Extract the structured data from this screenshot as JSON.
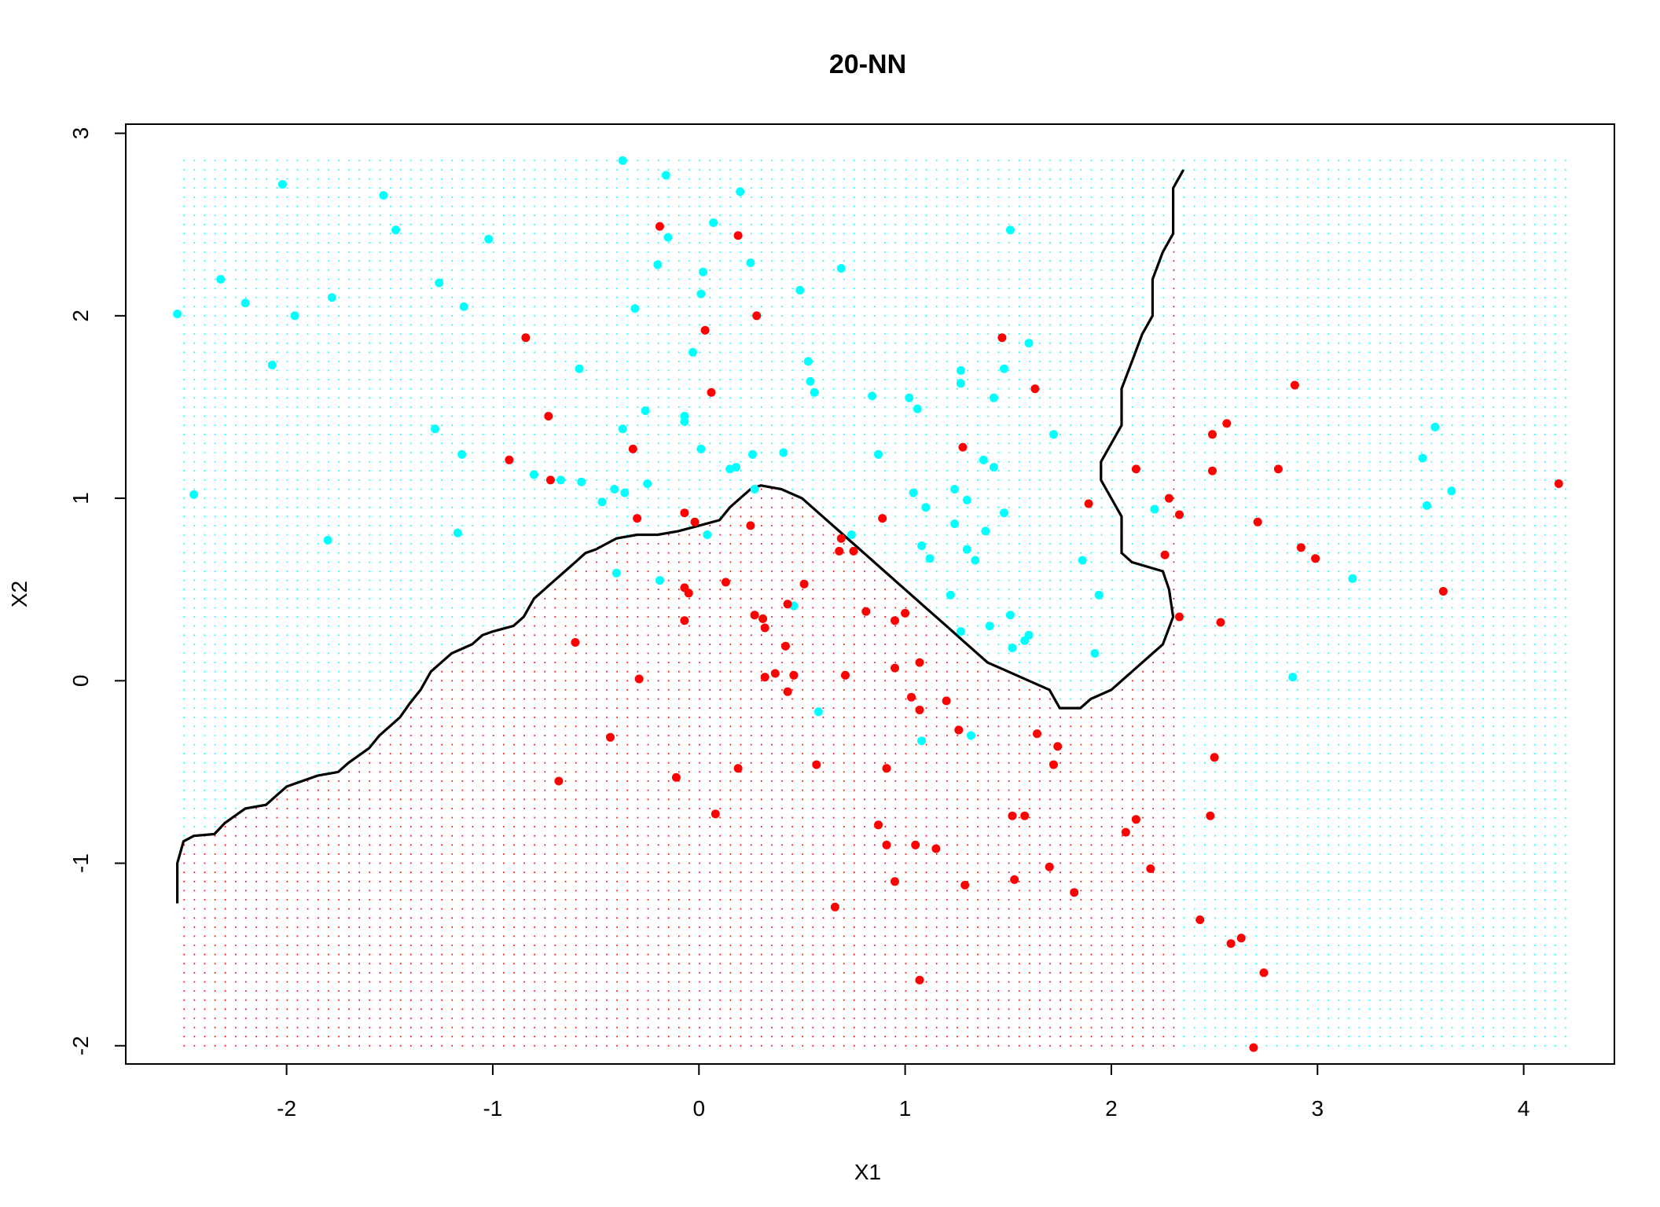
{
  "chart_data": {
    "type": "scatter",
    "title": "20-NN",
    "xlabel": "X1",
    "ylabel": "X2",
    "xlim": [
      -2.78,
      4.44
    ],
    "ylim": [
      -2.1,
      3.05
    ],
    "xticks": [
      -2,
      -1,
      0,
      1,
      2,
      3,
      4
    ],
    "yticks": [
      -2,
      -1,
      0,
      1,
      2,
      3
    ],
    "colors": {
      "class_blue": "#00FFFF",
      "class_red": "#FF0000",
      "boundary": "#000000"
    },
    "grid": {
      "xmin": -2.5,
      "xmax": 4.2,
      "ymin": -2.0,
      "ymax": 2.85,
      "step": 0.05,
      "description": "background prediction grid; blue above boundary, red below"
    },
    "boundary": [
      [
        -2.53,
        -1.22
      ],
      [
        -2.53,
        -1.0
      ],
      [
        -2.5,
        -0.88
      ],
      [
        -2.45,
        -0.85
      ],
      [
        -2.35,
        -0.84
      ],
      [
        -2.3,
        -0.78
      ],
      [
        -2.2,
        -0.7
      ],
      [
        -2.1,
        -0.68
      ],
      [
        -2.05,
        -0.63
      ],
      [
        -2.0,
        -0.58
      ],
      [
        -1.85,
        -0.52
      ],
      [
        -1.75,
        -0.5
      ],
      [
        -1.7,
        -0.45
      ],
      [
        -1.6,
        -0.37
      ],
      [
        -1.55,
        -0.3
      ],
      [
        -1.5,
        -0.25
      ],
      [
        -1.45,
        -0.2
      ],
      [
        -1.4,
        -0.12
      ],
      [
        -1.35,
        -0.05
      ],
      [
        -1.3,
        0.05
      ],
      [
        -1.25,
        0.1
      ],
      [
        -1.2,
        0.15
      ],
      [
        -1.1,
        0.2
      ],
      [
        -1.05,
        0.25
      ],
      [
        -1.0,
        0.27
      ],
      [
        -0.9,
        0.3
      ],
      [
        -0.85,
        0.35
      ],
      [
        -0.8,
        0.45
      ],
      [
        -0.75,
        0.5
      ],
      [
        -0.7,
        0.55
      ],
      [
        -0.65,
        0.6
      ],
      [
        -0.6,
        0.65
      ],
      [
        -0.55,
        0.7
      ],
      [
        -0.5,
        0.72
      ],
      [
        -0.45,
        0.75
      ],
      [
        -0.4,
        0.78
      ],
      [
        -0.3,
        0.8
      ],
      [
        -0.2,
        0.8
      ],
      [
        -0.1,
        0.82
      ],
      [
        0.0,
        0.85
      ],
      [
        0.1,
        0.88
      ],
      [
        0.15,
        0.95
      ],
      [
        0.2,
        1.0
      ],
      [
        0.25,
        1.05
      ],
      [
        0.3,
        1.07
      ],
      [
        0.4,
        1.05
      ],
      [
        0.5,
        1.0
      ],
      [
        0.6,
        0.9
      ],
      [
        0.7,
        0.8
      ],
      [
        0.8,
        0.7
      ],
      [
        0.9,
        0.6
      ],
      [
        1.0,
        0.5
      ],
      [
        1.1,
        0.4
      ],
      [
        1.2,
        0.3
      ],
      [
        1.3,
        0.2
      ],
      [
        1.4,
        0.1
      ],
      [
        1.5,
        0.05
      ],
      [
        1.6,
        0.0
      ],
      [
        1.7,
        -0.05
      ],
      [
        1.75,
        -0.15
      ],
      [
        1.85,
        -0.15
      ],
      [
        1.9,
        -0.1
      ],
      [
        2.0,
        -0.05
      ],
      [
        2.05,
        0.0
      ],
      [
        2.1,
        0.05
      ],
      [
        2.15,
        0.1
      ],
      [
        2.2,
        0.15
      ],
      [
        2.25,
        0.2
      ],
      [
        2.3,
        0.35
      ],
      [
        2.28,
        0.5
      ],
      [
        2.25,
        0.6
      ],
      [
        2.1,
        0.65
      ],
      [
        2.05,
        0.7
      ],
      [
        2.05,
        0.9
      ],
      [
        2.0,
        1.0
      ],
      [
        1.95,
        1.1
      ],
      [
        1.95,
        1.2
      ],
      [
        2.0,
        1.3
      ],
      [
        2.05,
        1.4
      ],
      [
        2.05,
        1.6
      ],
      [
        2.1,
        1.75
      ],
      [
        2.15,
        1.9
      ],
      [
        2.2,
        2.0
      ],
      [
        2.2,
        2.2
      ],
      [
        2.25,
        2.35
      ],
      [
        2.3,
        2.45
      ],
      [
        2.3,
        2.55
      ],
      [
        2.3,
        2.7
      ],
      [
        2.35,
        2.8
      ]
    ],
    "series": [
      {
        "name": "",
        "color": "#00FFFF",
        "points": [
          [
            -2.53,
            2.01
          ],
          [
            -2.45,
            1.02
          ],
          [
            -2.32,
            2.2
          ],
          [
            -2.2,
            2.07
          ],
          [
            -2.07,
            1.73
          ],
          [
            -2.02,
            2.72
          ],
          [
            -1.96,
            2.0
          ],
          [
            -1.78,
            2.1
          ],
          [
            -1.8,
            0.77
          ],
          [
            -1.53,
            2.66
          ],
          [
            -1.47,
            2.47
          ],
          [
            -1.28,
            1.38
          ],
          [
            -1.26,
            2.18
          ],
          [
            -1.15,
            1.24
          ],
          [
            -1.17,
            0.81
          ],
          [
            -1.14,
            2.05
          ],
          [
            -1.02,
            2.42
          ],
          [
            -0.8,
            1.13
          ],
          [
            -0.67,
            1.1
          ],
          [
            -0.58,
            1.71
          ],
          [
            -0.57,
            1.09
          ],
          [
            -0.47,
            0.98
          ],
          [
            -0.41,
            1.05
          ],
          [
            -0.4,
            0.59
          ],
          [
            -0.37,
            1.38
          ],
          [
            -0.36,
            1.03
          ],
          [
            -0.37,
            2.85
          ],
          [
            -0.31,
            2.04
          ],
          [
            -0.26,
            1.48
          ],
          [
            -0.25,
            1.08
          ],
          [
            -0.2,
            2.28
          ],
          [
            -0.19,
            0.55
          ],
          [
            -0.16,
            2.77
          ],
          [
            -0.15,
            2.43
          ],
          [
            -0.07,
            1.45
          ],
          [
            -0.07,
            1.42
          ],
          [
            -0.03,
            1.8
          ],
          [
            0.01,
            2.12
          ],
          [
            0.02,
            2.24
          ],
          [
            0.01,
            1.27
          ],
          [
            0.04,
            0.8
          ],
          [
            0.07,
            2.51
          ],
          [
            0.15,
            1.16
          ],
          [
            0.18,
            1.17
          ],
          [
            0.2,
            2.68
          ],
          [
            0.25,
            2.29
          ],
          [
            0.26,
            1.24
          ],
          [
            0.27,
            1.05
          ],
          [
            0.41,
            1.25
          ],
          [
            0.46,
            0.41
          ],
          [
            0.49,
            2.14
          ],
          [
            0.53,
            1.75
          ],
          [
            0.54,
            1.64
          ],
          [
            0.56,
            1.58
          ],
          [
            0.58,
            -0.17
          ],
          [
            0.69,
            2.26
          ],
          [
            0.74,
            0.8
          ],
          [
            0.84,
            1.56
          ],
          [
            0.87,
            1.24
          ],
          [
            1.02,
            1.55
          ],
          [
            1.04,
            1.03
          ],
          [
            1.06,
            1.49
          ],
          [
            1.08,
            0.74
          ],
          [
            1.1,
            0.95
          ],
          [
            1.12,
            0.67
          ],
          [
            1.08,
            -0.33
          ],
          [
            1.22,
            0.47
          ],
          [
            1.24,
            1.05
          ],
          [
            1.24,
            0.86
          ],
          [
            1.27,
            1.63
          ],
          [
            1.27,
            1.7
          ],
          [
            1.3,
            0.99
          ],
          [
            1.3,
            0.72
          ],
          [
            1.32,
            -0.3
          ],
          [
            1.34,
            0.66
          ],
          [
            1.38,
            1.21
          ],
          [
            1.39,
            0.82
          ],
          [
            1.41,
            0.3
          ],
          [
            1.43,
            1.17
          ],
          [
            1.43,
            1.55
          ],
          [
            1.48,
            1.71
          ],
          [
            1.48,
            0.92
          ],
          [
            1.51,
            2.47
          ],
          [
            1.51,
            0.36
          ],
          [
            1.52,
            0.18
          ],
          [
            1.58,
            0.22
          ],
          [
            1.6,
            0.25
          ],
          [
            1.6,
            1.85
          ],
          [
            1.72,
            1.35
          ],
          [
            1.86,
            0.66
          ],
          [
            1.92,
            0.15
          ],
          [
            1.94,
            0.47
          ],
          [
            2.21,
            0.94
          ],
          [
            3.17,
            0.56
          ],
          [
            2.88,
            0.02
          ],
          [
            3.51,
            1.22
          ],
          [
            3.53,
            0.96
          ],
          [
            3.57,
            1.39
          ],
          [
            3.65,
            1.04
          ],
          [
            1.27,
            0.27
          ]
        ]
      },
      {
        "name": "",
        "color": "#FF0000",
        "points": [
          [
            -0.84,
            1.88
          ],
          [
            -0.73,
            1.45
          ],
          [
            -0.72,
            1.1
          ],
          [
            -0.92,
            1.21
          ],
          [
            -0.6,
            0.21
          ],
          [
            -0.43,
            -0.31
          ],
          [
            -0.68,
            -0.55
          ],
          [
            -0.32,
            1.27
          ],
          [
            -0.3,
            0.89
          ],
          [
            -0.29,
            0.01
          ],
          [
            -0.19,
            2.49
          ],
          [
            -0.11,
            -0.53
          ],
          [
            -0.07,
            0.92
          ],
          [
            -0.07,
            0.51
          ],
          [
            -0.05,
            0.48
          ],
          [
            -0.07,
            0.33
          ],
          [
            -0.02,
            0.87
          ],
          [
            0.03,
            1.92
          ],
          [
            0.06,
            1.58
          ],
          [
            0.08,
            -0.73
          ],
          [
            0.13,
            0.54
          ],
          [
            0.19,
            2.44
          ],
          [
            0.19,
            -0.48
          ],
          [
            0.25,
            0.85
          ],
          [
            0.28,
            2.0
          ],
          [
            0.27,
            0.36
          ],
          [
            0.31,
            0.34
          ],
          [
            0.32,
            0.29
          ],
          [
            0.32,
            0.02
          ],
          [
            0.37,
            0.04
          ],
          [
            0.42,
            0.19
          ],
          [
            0.43,
            0.42
          ],
          [
            0.43,
            -0.06
          ],
          [
            0.46,
            0.03
          ],
          [
            0.51,
            0.53
          ],
          [
            0.57,
            -0.46
          ],
          [
            0.66,
            -1.24
          ],
          [
            0.68,
            0.71
          ],
          [
            0.69,
            0.78
          ],
          [
            0.71,
            0.03
          ],
          [
            0.75,
            0.71
          ],
          [
            0.81,
            0.38
          ],
          [
            0.87,
            -0.79
          ],
          [
            0.89,
            0.89
          ],
          [
            0.91,
            -0.48
          ],
          [
            0.91,
            -0.9
          ],
          [
            0.95,
            0.07
          ],
          [
            0.95,
            -1.1
          ],
          [
            0.95,
            0.33
          ],
          [
            1.0,
            0.37
          ],
          [
            1.03,
            -0.09
          ],
          [
            1.05,
            -0.9
          ],
          [
            1.07,
            -0.16
          ],
          [
            1.07,
            0.1
          ],
          [
            1.07,
            -1.64
          ],
          [
            1.15,
            -0.92
          ],
          [
            1.2,
            -0.11
          ],
          [
            1.26,
            -0.27
          ],
          [
            1.29,
            -1.12
          ],
          [
            1.28,
            1.28
          ],
          [
            1.47,
            1.88
          ],
          [
            1.52,
            -0.74
          ],
          [
            1.53,
            -1.09
          ],
          [
            1.58,
            -0.74
          ],
          [
            1.63,
            1.6
          ],
          [
            1.64,
            -0.29
          ],
          [
            1.7,
            -1.02
          ],
          [
            1.72,
            -0.46
          ],
          [
            1.74,
            -0.36
          ],
          [
            1.82,
            -1.16
          ],
          [
            1.89,
            0.97
          ],
          [
            2.07,
            -0.83
          ],
          [
            2.12,
            -0.76
          ],
          [
            2.12,
            1.16
          ],
          [
            2.19,
            -1.03
          ],
          [
            2.26,
            0.69
          ],
          [
            2.28,
            1.0
          ],
          [
            2.33,
            0.91
          ],
          [
            2.33,
            0.35
          ],
          [
            2.43,
            -1.31
          ],
          [
            2.48,
            -0.74
          ],
          [
            2.49,
            1.35
          ],
          [
            2.49,
            1.15
          ],
          [
            2.5,
            -0.42
          ],
          [
            2.53,
            0.32
          ],
          [
            2.56,
            1.41
          ],
          [
            2.58,
            -1.44
          ],
          [
            2.63,
            -1.41
          ],
          [
            2.69,
            -2.01
          ],
          [
            2.71,
            0.87
          ],
          [
            2.74,
            -1.6
          ],
          [
            2.81,
            1.16
          ],
          [
            2.89,
            1.62
          ],
          [
            2.92,
            0.73
          ],
          [
            2.99,
            0.67
          ],
          [
            3.61,
            0.49
          ],
          [
            4.17,
            1.08
          ]
        ]
      }
    ]
  }
}
